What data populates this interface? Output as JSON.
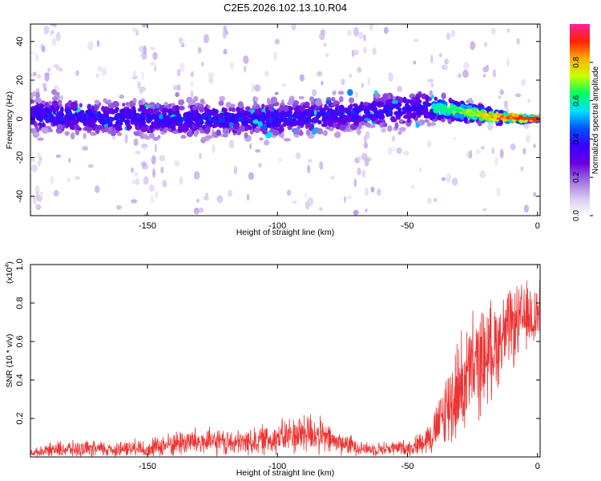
{
  "chart_data": [
    {
      "type": "heatmap",
      "title": "C2E5.2026.102.13.10.R04",
      "xlabel": "Height of straight line (km)",
      "ylabel": "Frequency (Hz)",
      "xlim": [
        -195,
        1
      ],
      "ylim": [
        -50,
        49
      ],
      "xticks": [
        -150,
        -100,
        -50,
        0
      ],
      "yticks": [
        -40,
        -20,
        0,
        20,
        40
      ],
      "colorbar": {
        "label": "Normalized spectral amplitude",
        "range": [
          0,
          1
        ],
        "ticks": [
          "0.0",
          "0.2",
          "0.4",
          "0.6",
          "0.8"
        ],
        "colors": [
          "#ffffff",
          "#d8c8f0",
          "#a070e0",
          "#6a00e0",
          "#3a00ff",
          "#0050ff",
          "#00e0ff",
          "#00ff60",
          "#c8ff00",
          "#ffb000",
          "#ff2000",
          "#ff20a0"
        ]
      },
      "trace": {
        "description_points": [
          {
            "x": -195,
            "f": 2
          },
          {
            "x": -150,
            "f": 0
          },
          {
            "x": -100,
            "f": 0
          },
          {
            "x": -80,
            "f": 2
          },
          {
            "x": -60,
            "f": 4
          },
          {
            "x": -45,
            "f": 6
          },
          {
            "x": -35,
            "f": 5
          },
          {
            "x": -25,
            "f": 3
          },
          {
            "x": -15,
            "f": 1
          },
          {
            "x": 0,
            "f": 0
          }
        ]
      }
    },
    {
      "type": "line",
      "xlabel": "Height of straight line (km)",
      "ylabel": "SNR (10 * v/v)",
      "multiplier": "(x10",
      "multiplier_exp": "4",
      "multiplier_close": ")",
      "xlim": [
        -195,
        1
      ],
      "ylim": [
        0,
        1.0
      ],
      "xticks": [
        -150,
        -100,
        -50,
        0
      ],
      "yticks": [
        "0.2",
        "0.4",
        "0.6",
        "0.8",
        "1.0"
      ],
      "series": [
        {
          "name": "SNR",
          "color": "#ee3333",
          "envelope": [
            {
              "x": -195,
              "mean": 0.02,
              "amp": 0.02
            },
            {
              "x": -185,
              "mean": 0.04,
              "amp": 0.05
            },
            {
              "x": -160,
              "mean": 0.04,
              "amp": 0.05
            },
            {
              "x": -148,
              "mean": 0.05,
              "amp": 0.06
            },
            {
              "x": -135,
              "mean": 0.08,
              "amp": 0.09
            },
            {
              "x": -115,
              "mean": 0.07,
              "amp": 0.08
            },
            {
              "x": -100,
              "mean": 0.1,
              "amp": 0.1
            },
            {
              "x": -88,
              "mean": 0.13,
              "amp": 0.14
            },
            {
              "x": -78,
              "mean": 0.08,
              "amp": 0.08
            },
            {
              "x": -65,
              "mean": 0.04,
              "amp": 0.04
            },
            {
              "x": -48,
              "mean": 0.05,
              "amp": 0.05
            },
            {
              "x": -40,
              "mean": 0.12,
              "amp": 0.12
            },
            {
              "x": -33,
              "mean": 0.3,
              "amp": 0.3
            },
            {
              "x": -25,
              "mean": 0.45,
              "amp": 0.35
            },
            {
              "x": -12,
              "mean": 0.65,
              "amp": 0.25
            },
            {
              "x": -5,
              "mean": 0.72,
              "amp": 0.22
            },
            {
              "x": 1,
              "mean": 0.75,
              "amp": 0.2
            }
          ]
        }
      ]
    }
  ]
}
